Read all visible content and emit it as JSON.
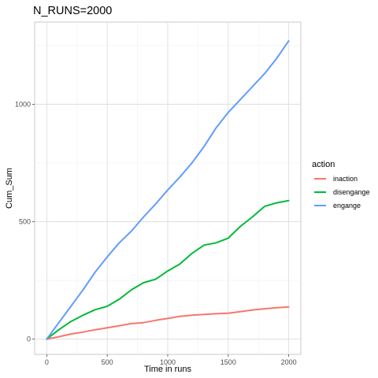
{
  "chart_data": {
    "type": "line",
    "title": "N_RUNS=2000",
    "xlabel": "Time in runs",
    "ylabel": "Cum_Sum",
    "xlim": [
      -100,
      2100
    ],
    "ylim": [
      -65,
      1350
    ],
    "x_ticks": [
      0,
      500,
      1000,
      1500,
      2000
    ],
    "y_ticks": [
      0,
      500,
      1000
    ],
    "grid": true,
    "legend": {
      "title": "action",
      "position": "right"
    },
    "series": [
      {
        "name": "inaction",
        "color": "#F8766D",
        "x": [
          0,
          100,
          200,
          300,
          400,
          500,
          600,
          700,
          800,
          900,
          1000,
          1100,
          1200,
          1300,
          1400,
          1500,
          1600,
          1700,
          1800,
          1900,
          2000
        ],
        "y": [
          0,
          10,
          22,
          30,
          40,
          48,
          57,
          66,
          70,
          80,
          88,
          97,
          102,
          105,
          108,
          110,
          117,
          124,
          129,
          134,
          137
        ]
      },
      {
        "name": "disengange",
        "color": "#00BA38",
        "x": [
          0,
          100,
          200,
          300,
          400,
          500,
          600,
          700,
          800,
          900,
          1000,
          1100,
          1200,
          1300,
          1400,
          1500,
          1600,
          1700,
          1800,
          1900,
          2000
        ],
        "y": [
          0,
          40,
          75,
          102,
          125,
          140,
          170,
          210,
          240,
          255,
          290,
          320,
          365,
          400,
          410,
          430,
          480,
          520,
          565,
          580,
          590
        ]
      },
      {
        "name": "engange",
        "color": "#619CFF",
        "x": [
          0,
          100,
          200,
          300,
          400,
          500,
          600,
          700,
          800,
          900,
          1000,
          1100,
          1200,
          1300,
          1400,
          1500,
          1600,
          1700,
          1800,
          1900,
          2000
        ],
        "y": [
          0,
          70,
          140,
          210,
          285,
          350,
          410,
          460,
          520,
          575,
          635,
          690,
          750,
          820,
          900,
          965,
          1020,
          1075,
          1130,
          1195,
          1270
        ]
      }
    ]
  }
}
